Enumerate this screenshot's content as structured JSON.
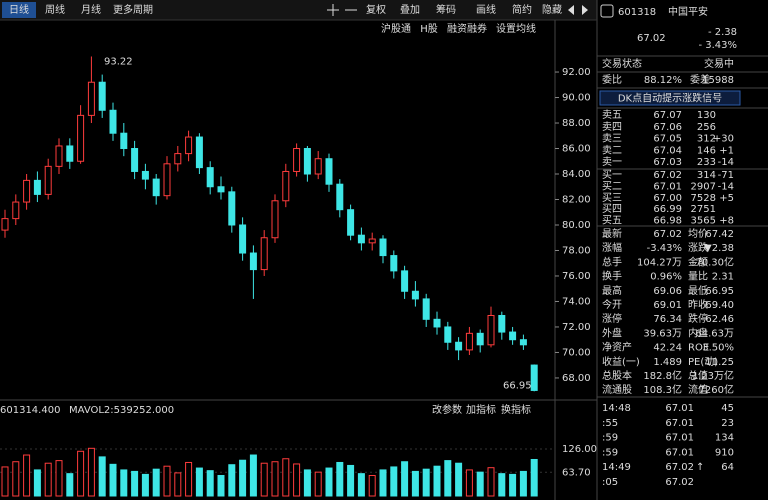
{
  "toolbar": {
    "periods": [
      "日线",
      "周线",
      "月线",
      "更多周期"
    ],
    "tools": [
      "复权",
      "叠加",
      "筹码",
      "画线",
      "简约",
      "隐藏"
    ]
  },
  "sub_toolbar": [
    "沪股通",
    "H股",
    "融资融券",
    "设置均线"
  ],
  "kline": {
    "ylim": [
      66.27,
      94.67
    ],
    "yticks": [
      {
        "value": 68,
        "label": "68.00"
      },
      {
        "value": 70,
        "label": "70.00"
      },
      {
        "value": 72,
        "label": "72.00"
      },
      {
        "value": 74,
        "label": "74.00"
      },
      {
        "value": 76,
        "label": "76.00"
      },
      {
        "value": 78,
        "label": "78.00"
      },
      {
        "value": 80,
        "label": "80.00"
      },
      {
        "value": 82,
        "label": "82.00"
      },
      {
        "value": 84,
        "label": "84.00"
      },
      {
        "value": 86,
        "label": "86.00"
      },
      {
        "value": 88,
        "label": "88.00"
      },
      {
        "value": 90,
        "label": "90.00"
      },
      {
        "value": 92,
        "label": "92.00"
      }
    ],
    "up_color": "#ff3c3c",
    "down_color": "#3ee6e6",
    "candles": [
      [
        79.6,
        81.2,
        79.0,
        80.5
      ],
      [
        80.5,
        82.4,
        80.0,
        81.8
      ],
      [
        81.8,
        84.0,
        81.2,
        83.5
      ],
      [
        83.5,
        84.2,
        81.8,
        82.4
      ],
      [
        82.4,
        85.2,
        82.0,
        84.6
      ],
      [
        84.6,
        86.8,
        84.0,
        86.2
      ],
      [
        86.2,
        86.8,
        84.4,
        85.0
      ],
      [
        85.0,
        89.4,
        84.8,
        88.6
      ],
      [
        88.6,
        93.22,
        88.0,
        91.2
      ],
      [
        91.2,
        91.8,
        88.4,
        89.0
      ],
      [
        89.0,
        89.6,
        86.6,
        87.2
      ],
      [
        87.2,
        88.0,
        85.4,
        86.0
      ],
      [
        86.0,
        86.6,
        83.6,
        84.2
      ],
      [
        84.2,
        84.8,
        82.8,
        83.6
      ],
      [
        83.6,
        84.0,
        81.6,
        82.3
      ],
      [
        82.3,
        85.4,
        82.0,
        84.8
      ],
      [
        84.8,
        86.2,
        84.2,
        85.6
      ],
      [
        85.6,
        87.4,
        85.0,
        86.9
      ],
      [
        86.9,
        87.2,
        84.0,
        84.5
      ],
      [
        84.5,
        85.0,
        82.4,
        83.0
      ],
      [
        83.0,
        83.8,
        82.0,
        82.6
      ],
      [
        82.6,
        83.0,
        79.4,
        80.0
      ],
      [
        80.0,
        80.6,
        77.2,
        77.8
      ],
      [
        77.8,
        78.4,
        74.2,
        76.5
      ],
      [
        76.5,
        79.6,
        76.0,
        79.0
      ],
      [
        79.0,
        82.4,
        78.6,
        81.9
      ],
      [
        81.9,
        84.8,
        81.4,
        84.2
      ],
      [
        84.2,
        86.4,
        83.8,
        86.0
      ],
      [
        86.0,
        86.2,
        83.4,
        84.0
      ],
      [
        84.0,
        85.8,
        83.6,
        85.2
      ],
      [
        85.2,
        85.6,
        82.6,
        83.2
      ],
      [
        83.2,
        83.6,
        80.6,
        81.2
      ],
      [
        81.2,
        81.6,
        78.8,
        79.2
      ],
      [
        79.2,
        79.8,
        78.0,
        78.6
      ],
      [
        78.6,
        79.4,
        78.0,
        78.9
      ],
      [
        78.9,
        79.2,
        77.0,
        77.6
      ],
      [
        77.6,
        78.0,
        75.8,
        76.4
      ],
      [
        76.4,
        76.8,
        74.2,
        74.8
      ],
      [
        74.8,
        75.6,
        73.6,
        74.2
      ],
      [
        74.2,
        74.6,
        72.0,
        72.6
      ],
      [
        72.6,
        73.2,
        71.4,
        72.0
      ],
      [
        72.0,
        72.4,
        70.2,
        70.8
      ],
      [
        70.8,
        71.2,
        69.4,
        70.2
      ],
      [
        70.2,
        72.0,
        69.8,
        71.5
      ],
      [
        71.5,
        71.8,
        70.0,
        70.6
      ],
      [
        70.6,
        73.6,
        70.4,
        72.9
      ],
      [
        72.9,
        73.2,
        71.0,
        71.6
      ],
      [
        71.6,
        72.0,
        70.6,
        71.0
      ],
      [
        71.0,
        71.4,
        70.2,
        70.6
      ],
      [
        69.01,
        69.06,
        66.95,
        67.02
      ]
    ],
    "high_label": "93.22",
    "low_label": "66.95"
  },
  "volume": {
    "header_left": "601314.400",
    "header_ma": "MAVOL2:539252.000",
    "buttons": [
      "改参数",
      "加指标",
      "换指标"
    ],
    "ylim": [
      0,
      204
    ],
    "yticks": [
      {
        "value": 63.7,
        "label": "63.70"
      },
      {
        "value": 126,
        "label": "126.00"
      }
    ],
    "values": [
      78,
      92,
      110,
      70,
      88,
      95,
      60,
      120,
      128,
      105,
      85,
      70,
      66,
      58,
      72,
      80,
      62,
      90,
      75,
      68,
      55,
      84,
      96,
      110,
      88,
      92,
      100,
      86,
      70,
      64,
      75,
      90,
      82,
      60,
      55,
      70,
      78,
      92,
      66,
      72,
      80,
      95,
      88,
      70,
      64,
      76,
      60,
      58,
      66,
      98
    ]
  },
  "quote": {
    "code": "601318",
    "name": "中国平安",
    "price": "67.02",
    "change": "- 2.38",
    "change_pct": "- 3.43%",
    "status_label": "交易状态",
    "status": "交易中",
    "wb_label": "委比",
    "wb": "88.12%",
    "wc_label": "委差",
    "wc": "15988",
    "signal_button": "DK点自动提示涨跌信号",
    "book": [
      [
        "卖五",
        "67.07",
        "130"
      ],
      [
        "卖四",
        "67.06",
        "256"
      ],
      [
        "卖三",
        "67.05",
        "312",
        "+30"
      ],
      [
        "卖二",
        "67.04",
        "146",
        "+1"
      ],
      [
        "卖一",
        "67.03",
        "233",
        "-14"
      ],
      [
        "买一",
        "67.02",
        "314",
        "-71"
      ],
      [
        "买二",
        "67.01",
        "2907",
        "-14"
      ],
      [
        "买三",
        "67.00",
        "7528",
        "+5"
      ],
      [
        "买四",
        "66.99",
        "2751"
      ],
      [
        "买五",
        "66.98",
        "3565",
        "+8"
      ]
    ],
    "stats": [
      [
        "最新",
        "67.02",
        "均价",
        "67.42"
      ],
      [
        "涨幅",
        "-3.43%",
        "涨跌",
        "▼2.38"
      ],
      [
        "总手",
        "104.27万",
        "金额",
        "70.30亿"
      ],
      [
        "换手",
        "0.96%",
        "量比",
        "2.31"
      ],
      [
        "最高",
        "69.06",
        "最低",
        "66.95"
      ],
      [
        "今开",
        "69.01",
        "昨收",
        "69.40"
      ],
      [
        "涨停",
        "76.34",
        "跌停",
        "62.46"
      ],
      [
        "外盘",
        "39.63万",
        "内盘",
        "64.63万"
      ],
      [
        "净资产",
        "42.24",
        "ROE",
        "3.50%"
      ],
      [
        "收益(一)",
        "1.489",
        "PE(动)",
        "11.25"
      ],
      [
        "总股本",
        "182.8亿",
        "总值",
        "1.23万亿"
      ],
      [
        "流通股",
        "108.3亿",
        "流值",
        "7260亿"
      ]
    ],
    "trades": [
      [
        "14:48",
        "67.01",
        "45"
      ],
      [
        ":55",
        "67.01",
        "23"
      ],
      [
        ":59",
        "67.01",
        "134"
      ],
      [
        ":59",
        "67.01",
        "910"
      ],
      [
        "14:49",
        "67.02",
        "64",
        "↑"
      ],
      [
        ":05",
        "67.02"
      ]
    ]
  }
}
